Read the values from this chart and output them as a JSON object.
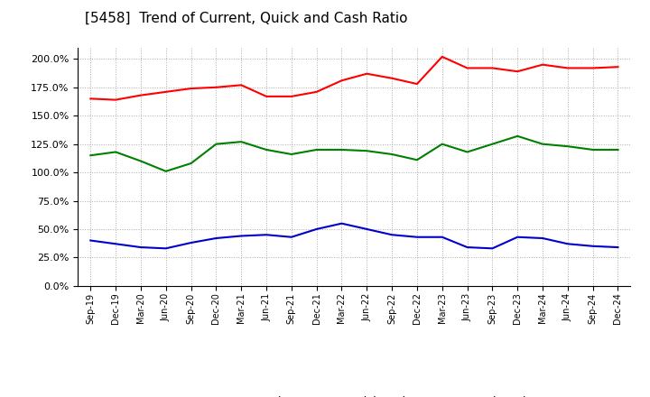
{
  "title": "[5458]  Trend of Current, Quick and Cash Ratio",
  "x_labels": [
    "Sep-19",
    "Dec-19",
    "Mar-20",
    "Jun-20",
    "Sep-20",
    "Dec-20",
    "Mar-21",
    "Jun-21",
    "Sep-21",
    "Dec-21",
    "Mar-22",
    "Jun-22",
    "Sep-22",
    "Dec-22",
    "Mar-23",
    "Jun-23",
    "Sep-23",
    "Dec-23",
    "Mar-24",
    "Jun-24",
    "Sep-24",
    "Dec-24"
  ],
  "current_ratio": [
    165,
    164,
    168,
    171,
    174,
    175,
    177,
    167,
    167,
    171,
    181,
    187,
    183,
    178,
    202,
    192,
    192,
    189,
    195,
    192,
    192,
    193
  ],
  "quick_ratio": [
    115,
    118,
    110,
    101,
    108,
    125,
    127,
    120,
    116,
    120,
    120,
    119,
    116,
    111,
    125,
    118,
    125,
    132,
    125,
    123,
    120,
    120
  ],
  "cash_ratio": [
    40,
    37,
    34,
    33,
    38,
    42,
    44,
    45,
    43,
    50,
    55,
    50,
    45,
    43,
    43,
    34,
    33,
    43,
    42,
    37,
    35,
    34
  ],
  "current_color": "#FF0000",
  "quick_color": "#008000",
  "cash_color": "#0000CD",
  "ylim": [
    0,
    210
  ],
  "yticks": [
    0,
    25,
    50,
    75,
    100,
    125,
    150,
    175,
    200
  ],
  "background_color": "#FFFFFF",
  "grid_color": "#AAAAAA",
  "title_fontsize": 11,
  "legend_entries": [
    "Current Ratio",
    "Quick Ratio",
    "Cash Ratio"
  ]
}
